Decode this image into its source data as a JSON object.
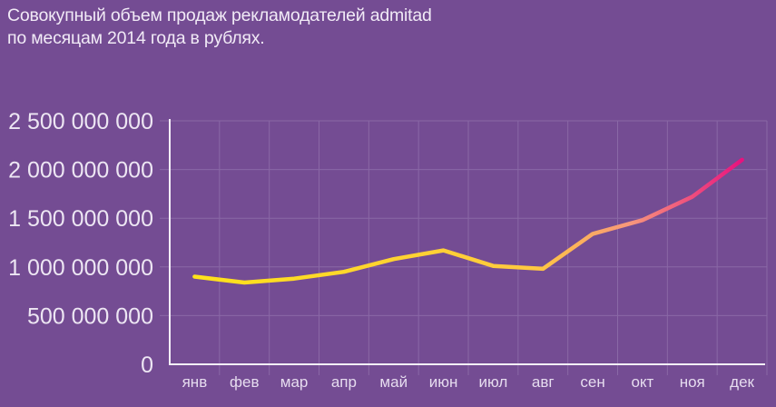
{
  "title": {
    "line1": "Совокупный объем продаж рекламодателей admitad",
    "line2": "по месяцам 2014 года в рублях."
  },
  "colors": {
    "background": "#744c93",
    "line_start": "#ffe21a",
    "line_mid": "#f7a07a",
    "line_end": "#e8127e",
    "axis": "#f4eef8",
    "grid": "#8a68a6"
  },
  "chart_data": {
    "type": "line",
    "title": "Совокупный объем продаж рекламодателей admitad по месяцам 2014 года в рублях.",
    "xlabel": "",
    "ylabel": "",
    "categories": [
      "янв",
      "фев",
      "мар",
      "апр",
      "май",
      "июн",
      "июл",
      "авг",
      "сен",
      "окт",
      "ноя",
      "дек"
    ],
    "series": [
      {
        "name": "Объем продаж",
        "values": [
          900000000,
          840000000,
          880000000,
          950000000,
          1080000000,
          1170000000,
          1010000000,
          980000000,
          1340000000,
          1480000000,
          1720000000,
          2100000000
        ]
      }
    ],
    "ylim": [
      0,
      2500000000
    ],
    "yticks": [
      0,
      500000000,
      1000000000,
      1500000000,
      2000000000,
      2500000000
    ],
    "ytick_labels": [
      "0",
      "500 000 000",
      "1 000 000 000",
      "1 500 000 000",
      "2 000 000 000",
      "2 500 000 000"
    ],
    "grid": true,
    "legend": "none",
    "line_gradient": "yellow to magenta (left to right)"
  }
}
